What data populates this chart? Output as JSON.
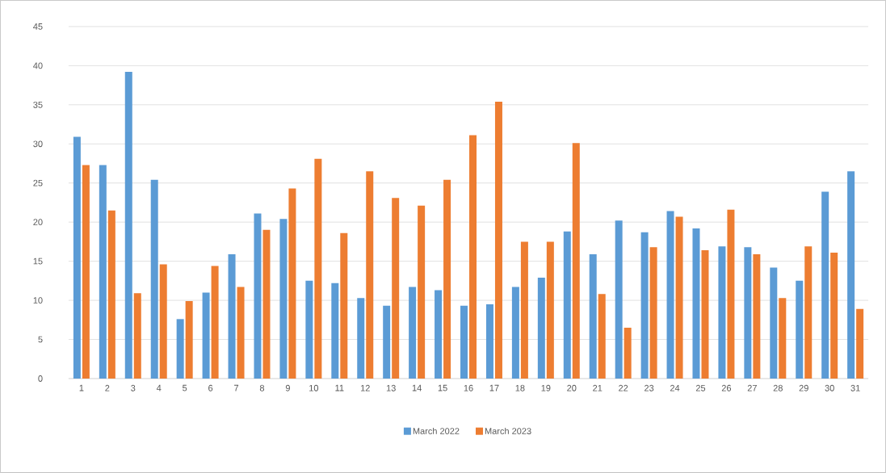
{
  "chart_data": {
    "type": "bar",
    "categories": [
      "1",
      "2",
      "3",
      "4",
      "5",
      "6",
      "7",
      "8",
      "9",
      "10",
      "11",
      "12",
      "13",
      "14",
      "15",
      "16",
      "17",
      "18",
      "19",
      "20",
      "21",
      "22",
      "23",
      "24",
      "25",
      "26",
      "27",
      "28",
      "29",
      "30",
      "31"
    ],
    "series": [
      {
        "name": "March 2022",
        "color": "#5b9bd5",
        "values": [
          30.9,
          27.3,
          39.2,
          25.4,
          7.6,
          11.0,
          15.9,
          21.1,
          20.4,
          12.5,
          12.2,
          10.3,
          9.3,
          11.7,
          11.3,
          9.3,
          9.5,
          11.7,
          12.9,
          18.8,
          15.9,
          20.2,
          18.7,
          21.4,
          19.2,
          16.9,
          16.8,
          14.2,
          12.5,
          23.9,
          26.5
        ]
      },
      {
        "name": "March 2023",
        "color": "#ed7d31",
        "values": [
          27.3,
          21.5,
          10.9,
          14.6,
          9.9,
          14.4,
          11.7,
          19.0,
          24.3,
          28.1,
          18.6,
          26.5,
          23.1,
          22.1,
          25.4,
          31.1,
          35.4,
          17.5,
          17.5,
          30.1,
          10.8,
          6.5,
          16.8,
          20.7,
          16.4,
          21.6,
          15.9,
          10.3,
          16.9,
          16.1,
          8.9
        ]
      }
    ],
    "ylim": [
      0,
      45
    ],
    "yticks": [
      0,
      5,
      10,
      15,
      20,
      25,
      30,
      35,
      40,
      45
    ],
    "grid": "y",
    "legend": "bottom"
  }
}
